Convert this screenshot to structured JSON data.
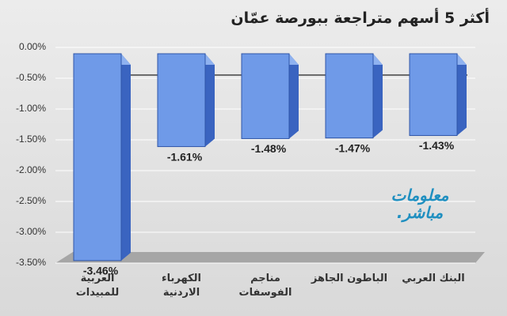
{
  "chart_data": {
    "type": "bar",
    "title": "أكثر 5 أسهم متراجعة ببورصة عمّان",
    "categories": [
      "العربية للمبيدات",
      "الكهرباء الاردنية",
      "مناجم الفوسفات",
      "الباطون الجاهز",
      "البنك العربي"
    ],
    "values": [
      -3.46,
      -1.61,
      -1.48,
      -1.47,
      -1.43
    ],
    "value_labels": [
      "-3.46%",
      "-1.61%",
      "-1.48%",
      "-1.47%",
      "-1.43%"
    ],
    "color": "#6f9ae8",
    "ylim": [
      -3.5,
      0
    ],
    "yticks": [
      {
        "value": 0,
        "label": "0.00%"
      },
      {
        "value": -0.5,
        "label": "-0.50%"
      },
      {
        "value": -1,
        "label": "-1.00%"
      },
      {
        "value": -1.5,
        "label": "-1.50%"
      },
      {
        "value": -2,
        "label": "-2.00%"
      },
      {
        "value": -2.5,
        "label": "-2.50%"
      },
      {
        "value": -3,
        "label": "-3.00%"
      },
      {
        "value": -3.5,
        "label": "-3.50%"
      }
    ],
    "grid": true,
    "watermark": [
      "معلومات",
      "مباشر."
    ]
  }
}
